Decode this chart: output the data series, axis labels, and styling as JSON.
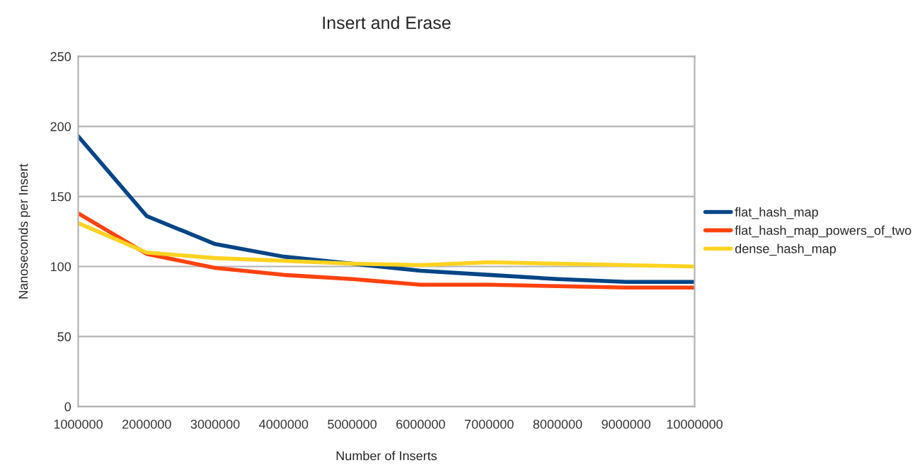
{
  "chart_data": {
    "type": "line",
    "title": "Insert and Erase",
    "xlabel": "Number of Inserts",
    "ylabel": "Nanoseconds per Insert",
    "categories": [
      "1000000",
      "2000000",
      "3000000",
      "4000000",
      "5000000",
      "6000000",
      "7000000",
      "8000000",
      "9000000",
      "10000000"
    ],
    "series": [
      {
        "name": "flat_hash_map",
        "color": "#004586",
        "values": [
          193,
          136,
          116,
          107,
          102,
          97,
          94,
          91,
          89,
          89
        ]
      },
      {
        "name": "flat_hash_map_powers_of_two",
        "color": "#ff420e",
        "values": [
          138,
          109,
          99,
          94,
          91,
          87,
          87,
          86,
          85,
          85
        ]
      },
      {
        "name": "dense_hash_map",
        "color": "#ffd320",
        "values": [
          131,
          110,
          106,
          104,
          102,
          101,
          103,
          102,
          101,
          100
        ]
      }
    ],
    "ylim": [
      0,
      250
    ],
    "yticks": [
      0,
      50,
      100,
      150,
      200,
      250
    ],
    "grid": "y",
    "legend": "right",
    "marker": "none",
    "line_style": "solid"
  }
}
